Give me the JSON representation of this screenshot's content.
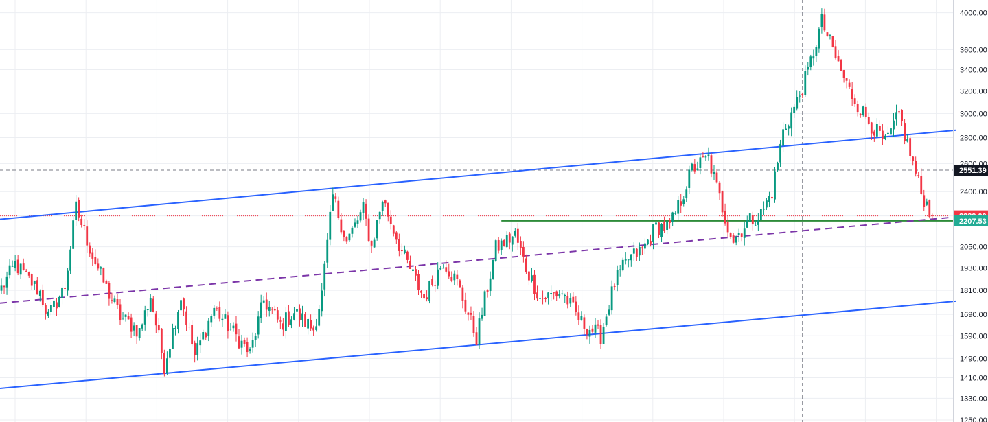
{
  "chart_data": {
    "type": "candlestick",
    "scale": "log",
    "grid": true,
    "y_axis": {
      "position": "right",
      "ylim": [
        1250,
        4100
      ],
      "ticks": [
        4000,
        3600,
        3400,
        3200,
        3000,
        2800,
        2600,
        2400,
        2239,
        2050,
        1930,
        1810,
        1690,
        1590,
        1490,
        1410,
        1330,
        1250
      ],
      "tick_labels": [
        "4000.00",
        "3600.00",
        "3400.00",
        "3200.00",
        "3000.00",
        "2800.00",
        "2600.00",
        "2400.00",
        "2239.00",
        "2050.00",
        "1930.00",
        "1810.00",
        "1690.00",
        "1590.00",
        "1490.00",
        "1410.00",
        "1330.00",
        "1250.00"
      ]
    },
    "price_badges": [
      {
        "name": "current_price",
        "label": "2551.39",
        "value": 2551.39,
        "color": "#131722"
      },
      {
        "name": "last_close",
        "label": "2239.00",
        "value": 2239.0,
        "color": "#f23645"
      },
      {
        "name": "support_level",
        "label": "2207.53",
        "value": 2207.53,
        "color": "#22ab94"
      }
    ],
    "horizontal_lines": [
      {
        "name": "crosshair-price",
        "value": 2551.39,
        "style": "dashed",
        "color": "#787b86"
      },
      {
        "name": "last-price",
        "value": 2239.0,
        "style": "dotted",
        "color": "#f23645"
      },
      {
        "name": "support",
        "value": 2207.53,
        "style": "solid",
        "color": "#2e8b3a",
        "from_bar": 181
      }
    ],
    "crosshair_x_bar": 290,
    "trend_lines": [
      {
        "name": "channel-upper",
        "color": "#2962ff",
        "style": "solid",
        "from": [
          0,
          2217
        ],
        "to": [
          345,
          2860
        ]
      },
      {
        "name": "channel-lower",
        "color": "#2962ff",
        "style": "solid",
        "from": [
          0,
          1368
        ],
        "to": [
          345,
          1755
        ]
      },
      {
        "name": "channel-mid",
        "color": "#7b35a8",
        "style": "dashed",
        "from": [
          0,
          1745
        ],
        "to": [
          345,
          2232
        ]
      }
    ],
    "colors": {
      "up": "#089981",
      "down": "#f23645",
      "grid": "#eceef2",
      "background": "#ffffff"
    },
    "anchors": [
      [
        0,
        1820
      ],
      [
        5,
        1950
      ],
      [
        14,
        1800
      ],
      [
        17,
        1680
      ],
      [
        23,
        1830
      ],
      [
        27,
        2290
      ],
      [
        33,
        2000
      ],
      [
        38,
        1820
      ],
      [
        43,
        1680
      ],
      [
        50,
        1610
      ],
      [
        54,
        1780
      ],
      [
        59,
        1460
      ],
      [
        65,
        1780
      ],
      [
        70,
        1500
      ],
      [
        77,
        1720
      ],
      [
        83,
        1620
      ],
      [
        90,
        1510
      ],
      [
        95,
        1760
      ],
      [
        101,
        1640
      ],
      [
        106,
        1700
      ],
      [
        113,
        1620
      ],
      [
        116,
        1790
      ],
      [
        120,
        2370
      ],
      [
        125,
        2080
      ],
      [
        131,
        2280
      ],
      [
        134,
        2050
      ],
      [
        138,
        2350
      ],
      [
        145,
        2020
      ],
      [
        153,
        1770
      ],
      [
        160,
        1970
      ],
      [
        165,
        1850
      ],
      [
        172,
        1580
      ],
      [
        179,
        2040
      ],
      [
        186,
        2120
      ],
      [
        190,
        1930
      ],
      [
        195,
        1770
      ],
      [
        203,
        1800
      ],
      [
        210,
        1650
      ],
      [
        217,
        1590
      ],
      [
        222,
        1850
      ],
      [
        227,
        1980
      ],
      [
        232,
        2030
      ],
      [
        237,
        2170
      ],
      [
        242,
        2170
      ],
      [
        246,
        2340
      ],
      [
        250,
        2560
      ],
      [
        256,
        2640
      ],
      [
        262,
        2230
      ],
      [
        265,
        2090
      ],
      [
        270,
        2200
      ],
      [
        275,
        2250
      ],
      [
        279,
        2400
      ],
      [
        283,
        2850
      ],
      [
        288,
        3100
      ],
      [
        292,
        3380
      ],
      [
        297,
        3900
      ],
      [
        303,
        3450
      ],
      [
        307,
        3200
      ],
      [
        313,
        2970
      ],
      [
        320,
        2750
      ],
      [
        325,
        2990
      ],
      [
        330,
        2600
      ],
      [
        333,
        2390
      ],
      [
        337,
        2239
      ]
    ]
  }
}
